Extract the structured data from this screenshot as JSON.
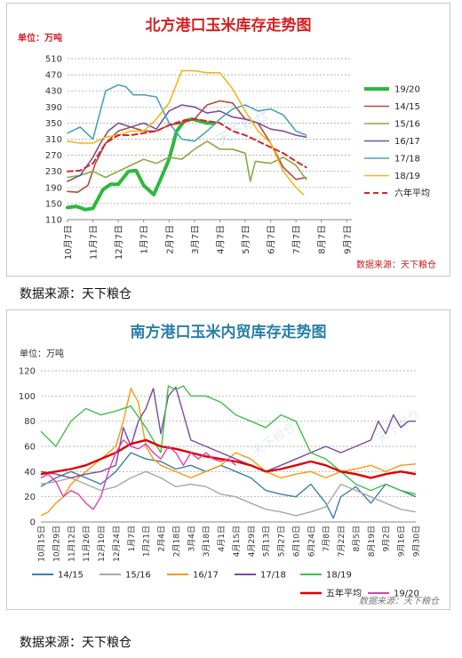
{
  "chart_data": [
    {
      "type": "line",
      "title": "北方港口玉米库存走势图",
      "unit_label": "单位：万吨",
      "source": "数据来源：天下粮仓",
      "watermark": "天下粮仓",
      "ylim": [
        110,
        510
      ],
      "yticks": [
        110,
        150,
        190,
        230,
        270,
        310,
        350,
        390,
        430,
        470,
        510
      ],
      "categories": [
        "10月7日",
        "11月7日",
        "12月7日",
        "1月7日",
        "2月7日",
        "3月7日",
        "4月7日",
        "5月7日",
        "6月7日",
        "7月7日",
        "8月7日",
        "9月7日"
      ],
      "grid": "dotted horizontal",
      "legend_position": "right",
      "series": [
        {
          "name": "19/20",
          "color": "#2db83d",
          "width": 4,
          "dash": "",
          "x": [
            0,
            0.35,
            0.7,
            1.0,
            1.4,
            1.7,
            2.0,
            2.4,
            2.7,
            3.0,
            3.4,
            3.7,
            4.0,
            4.3,
            4.6,
            4.9,
            5.2,
            5.5,
            5.8
          ],
          "values": [
            140,
            143,
            135,
            138,
            185,
            198,
            198,
            230,
            232,
            195,
            172,
            215,
            260,
            330,
            355,
            360,
            355,
            350,
            350
          ]
        },
        {
          "name": "14/15",
          "color": "#b34a3c",
          "width": 1.6,
          "dash": "",
          "x": [
            0,
            0.4,
            0.8,
            1.1,
            1.5,
            2.0,
            2.5,
            3.0,
            3.5,
            4.0,
            4.5,
            5.0,
            5.5,
            6.0,
            6.5,
            7.0,
            7.5,
            8.0,
            8.5,
            9.0,
            9.4
          ],
          "values": [
            180,
            178,
            195,
            250,
            300,
            330,
            340,
            330,
            330,
            345,
            350,
            360,
            395,
            405,
            400,
            360,
            350,
            300,
            240,
            210,
            215
          ]
        },
        {
          "name": "15/16",
          "color": "#8aaa44",
          "width": 1.6,
          "dash": "",
          "x": [
            0,
            0.5,
            1.0,
            1.5,
            2.0,
            2.5,
            3.0,
            3.5,
            4.0,
            4.5,
            5.0,
            5.5,
            6.0,
            6.5,
            7.0,
            7.2,
            7.4,
            8.0,
            8.5,
            9.0,
            9.4
          ],
          "values": [
            215,
            220,
            230,
            215,
            230,
            245,
            260,
            250,
            265,
            260,
            285,
            305,
            285,
            285,
            275,
            205,
            255,
            250,
            265,
            245,
            210
          ]
        },
        {
          "name": "16/17",
          "color": "#7b4f9e",
          "width": 1.6,
          "dash": "",
          "x": [
            0,
            0.5,
            1.0,
            1.3,
            1.6,
            2.0,
            2.5,
            3.0,
            3.5,
            4.0,
            4.5,
            5.0,
            5.5,
            6.0,
            6.5,
            7.0,
            7.5,
            8.0,
            8.5,
            9.0,
            9.4
          ],
          "values": [
            205,
            220,
            265,
            300,
            330,
            350,
            340,
            350,
            335,
            380,
            395,
            390,
            375,
            380,
            365,
            360,
            350,
            335,
            330,
            320,
            315
          ]
        },
        {
          "name": "17/18",
          "color": "#4aa3b6",
          "width": 1.6,
          "dash": "",
          "x": [
            0,
            0.5,
            1.0,
            1.5,
            2.0,
            2.3,
            2.6,
            3.0,
            3.5,
            4.0,
            4.5,
            5.0,
            5.5,
            6.0,
            6.5,
            7.0,
            7.5,
            8.0,
            8.5,
            9.0,
            9.4
          ],
          "values": [
            325,
            340,
            310,
            430,
            445,
            440,
            420,
            420,
            415,
            350,
            310,
            305,
            330,
            360,
            385,
            395,
            380,
            385,
            370,
            330,
            320
          ]
        },
        {
          "name": "18/19",
          "color": "#f0b81c",
          "width": 1.6,
          "dash": "",
          "x": [
            0,
            0.5,
            1.0,
            1.5,
            2.0,
            2.5,
            3.0,
            3.5,
            4.0,
            4.5,
            5.0,
            5.5,
            6.0,
            6.5,
            7.0,
            7.5,
            8.0,
            8.5,
            9.0,
            9.3
          ],
          "values": [
            305,
            300,
            300,
            315,
            320,
            330,
            330,
            360,
            400,
            480,
            480,
            475,
            475,
            435,
            380,
            330,
            300,
            230,
            190,
            172
          ]
        },
        {
          "name": "六年平均",
          "color": "#d6262a",
          "width": 2,
          "dash": "6,4",
          "x": [
            0,
            0.5,
            1.0,
            1.5,
            2.0,
            2.5,
            3.0,
            3.5,
            4.0,
            4.5,
            5.0,
            5.5,
            6.0,
            6.5,
            7.0,
            7.5,
            8.0,
            8.5,
            9.0,
            9.4
          ],
          "values": [
            230,
            232,
            250,
            300,
            320,
            320,
            325,
            330,
            345,
            355,
            360,
            355,
            350,
            330,
            320,
            305,
            290,
            275,
            255,
            240
          ]
        }
      ]
    },
    {
      "type": "line",
      "title": "南方港口玉米内贸库存走势图",
      "unit_label": "单位：万吨",
      "source": "数据来源：天下粮仓",
      "watermark": "天下粮仓",
      "ylim": [
        0,
        120
      ],
      "yticks": [
        0,
        20,
        40,
        60,
        80,
        100,
        120
      ],
      "categories": [
        "10月15日",
        "10月22日",
        "10月29日",
        "11月5日",
        "11月12日",
        "11月19日",
        "11月26日",
        "12月3日",
        "12月10日",
        "12月17日",
        "12月24日",
        "12月31日",
        "1月7日",
        "1月14日",
        "1月21日",
        "1月28日",
        "2月4日",
        "2月11日",
        "2月18日",
        "2月25日",
        "3月4日",
        "3月11日",
        "3月18日",
        "3月25日",
        "4月1日",
        "4月8日",
        "4月15日",
        "4月22日",
        "4月29日",
        "5月6日",
        "5月13日",
        "5月20日",
        "5月27日",
        "6月3日",
        "6月10日",
        "6月17日",
        "6月24日",
        "7月1日",
        "7月8日",
        "7月15日",
        "7月22日",
        "7月29日",
        "8月5日",
        "8月12日",
        "8月19日",
        "8月26日",
        "9月2日",
        "9月9日",
        "9月16日",
        "9月23日",
        "9月30日"
      ],
      "tick_labels": [
        "10月15日",
        "10月29日",
        "11月12日",
        "11月26日",
        "12月10日",
        "12月24日",
        "1月7日",
        "1月21日",
        "2月4日",
        "2月18日",
        "3月4日",
        "3月18日",
        "4月1日",
        "4月15日",
        "4月29日",
        "5月13日",
        "5月27日",
        "6月10日",
        "6月24日",
        "7月8日",
        "7月22日",
        "8月5日",
        "8月19日",
        "9月2日",
        "9月16日",
        "9月30日"
      ],
      "grid": "dotted horizontal",
      "legend_position": "bottom",
      "series": [
        {
          "name": "14/15",
          "color": "#3a7fa8",
          "width": 1.4,
          "dash": "",
          "x": [
            0,
            2,
            4,
            6,
            8,
            10,
            12,
            14,
            16,
            18,
            20,
            22,
            24,
            26,
            28,
            30,
            32,
            34,
            36,
            38,
            39,
            40,
            42,
            44,
            46,
            48,
            50
          ],
          "values": [
            28,
            35,
            40,
            35,
            30,
            40,
            55,
            50,
            48,
            42,
            45,
            40,
            45,
            40,
            35,
            25,
            22,
            20,
            30,
            15,
            3,
            20,
            28,
            15,
            30,
            25,
            20
          ]
        },
        {
          "name": "15/16",
          "color": "#a8a8a8",
          "width": 1.4,
          "dash": "",
          "x": [
            0,
            2,
            4,
            6,
            8,
            10,
            12,
            14,
            16,
            18,
            20,
            22,
            24,
            26,
            28,
            30,
            32,
            34,
            36,
            38,
            40,
            42,
            44,
            46,
            48,
            50
          ],
          "values": [
            30,
            32,
            35,
            30,
            25,
            28,
            35,
            40,
            35,
            28,
            30,
            28,
            22,
            20,
            15,
            10,
            8,
            5,
            8,
            12,
            30,
            25,
            20,
            15,
            10,
            8
          ]
        },
        {
          "name": "16/17",
          "color": "#f39c12",
          "width": 1.4,
          "dash": "",
          "x": [
            0,
            1,
            2,
            3,
            4,
            5,
            6,
            7,
            8,
            9,
            10,
            11,
            12,
            13,
            14,
            15,
            16,
            18,
            20,
            22,
            24,
            26,
            28,
            30,
            32,
            34,
            36,
            38,
            40,
            42,
            44,
            46,
            48,
            50
          ],
          "values": [
            5,
            8,
            15,
            20,
            30,
            35,
            40,
            45,
            50,
            55,
            60,
            80,
            106,
            95,
            60,
            50,
            45,
            40,
            35,
            40,
            45,
            55,
            50,
            40,
            35,
            38,
            40,
            35,
            40,
            42,
            45,
            40,
            45,
            46
          ]
        },
        {
          "name": "17/18",
          "color": "#7a4aa0",
          "width": 1.4,
          "dash": "",
          "x": [
            0,
            2,
            4,
            6,
            8,
            10,
            11,
            12,
            13,
            14,
            15,
            16,
            17,
            18,
            20,
            22,
            24,
            26,
            28,
            30,
            32,
            34,
            36,
            38,
            40,
            42,
            44,
            45,
            46,
            47,
            48,
            49,
            50
          ],
          "values": [
            40,
            38,
            35,
            38,
            40,
            45,
            75,
            60,
            80,
            90,
            106,
            70,
            100,
            107,
            65,
            60,
            55,
            50,
            45,
            40,
            45,
            50,
            55,
            60,
            55,
            60,
            65,
            80,
            70,
            85,
            75,
            80,
            80
          ]
        },
        {
          "name": "18/19",
          "color": "#3fbf4a",
          "width": 1.4,
          "dash": "",
          "x": [
            0,
            2,
            4,
            6,
            8,
            10,
            12,
            14,
            16,
            17,
            18,
            19,
            20,
            22,
            24,
            26,
            28,
            30,
            32,
            34,
            36,
            38,
            40,
            42,
            44,
            46,
            48,
            50
          ],
          "values": [
            72,
            60,
            80,
            90,
            85,
            88,
            92,
            75,
            55,
            108,
            105,
            108,
            100,
            100,
            95,
            85,
            80,
            75,
            85,
            80,
            55,
            50,
            40,
            30,
            25,
            30,
            25,
            22
          ]
        },
        {
          "name": "五年平均",
          "color": "#e00000",
          "width": 2.4,
          "dash": "",
          "x": [
            0,
            2,
            4,
            6,
            8,
            10,
            12,
            14,
            16,
            18,
            20,
            22,
            24,
            26,
            28,
            30,
            32,
            34,
            36,
            38,
            40,
            42,
            44,
            46,
            48,
            50
          ],
          "values": [
            38,
            40,
            42,
            45,
            50,
            55,
            62,
            65,
            60,
            58,
            55,
            52,
            50,
            48,
            45,
            40,
            42,
            45,
            48,
            45,
            40,
            38,
            35,
            38,
            40,
            38
          ]
        },
        {
          "name": "19/20",
          "color": "#e040a8",
          "width": 1.4,
          "dash": "",
          "x": [
            0,
            1,
            2,
            3,
            4,
            5,
            6,
            7,
            8,
            9,
            10,
            11,
            12,
            13,
            14,
            15,
            16,
            17,
            18,
            19,
            20,
            21,
            22,
            23,
            24,
            25,
            26
          ],
          "values": [
            35,
            38,
            32,
            20,
            25,
            22,
            15,
            10,
            20,
            40,
            55,
            65,
            60,
            58,
            62,
            55,
            50,
            60,
            55,
            45,
            55,
            50,
            55,
            50,
            48,
            50,
            45
          ]
        }
      ]
    }
  ],
  "captions": {
    "first": "数据来源：天下粮仓",
    "second": "数据来源：天下粮仓"
  }
}
